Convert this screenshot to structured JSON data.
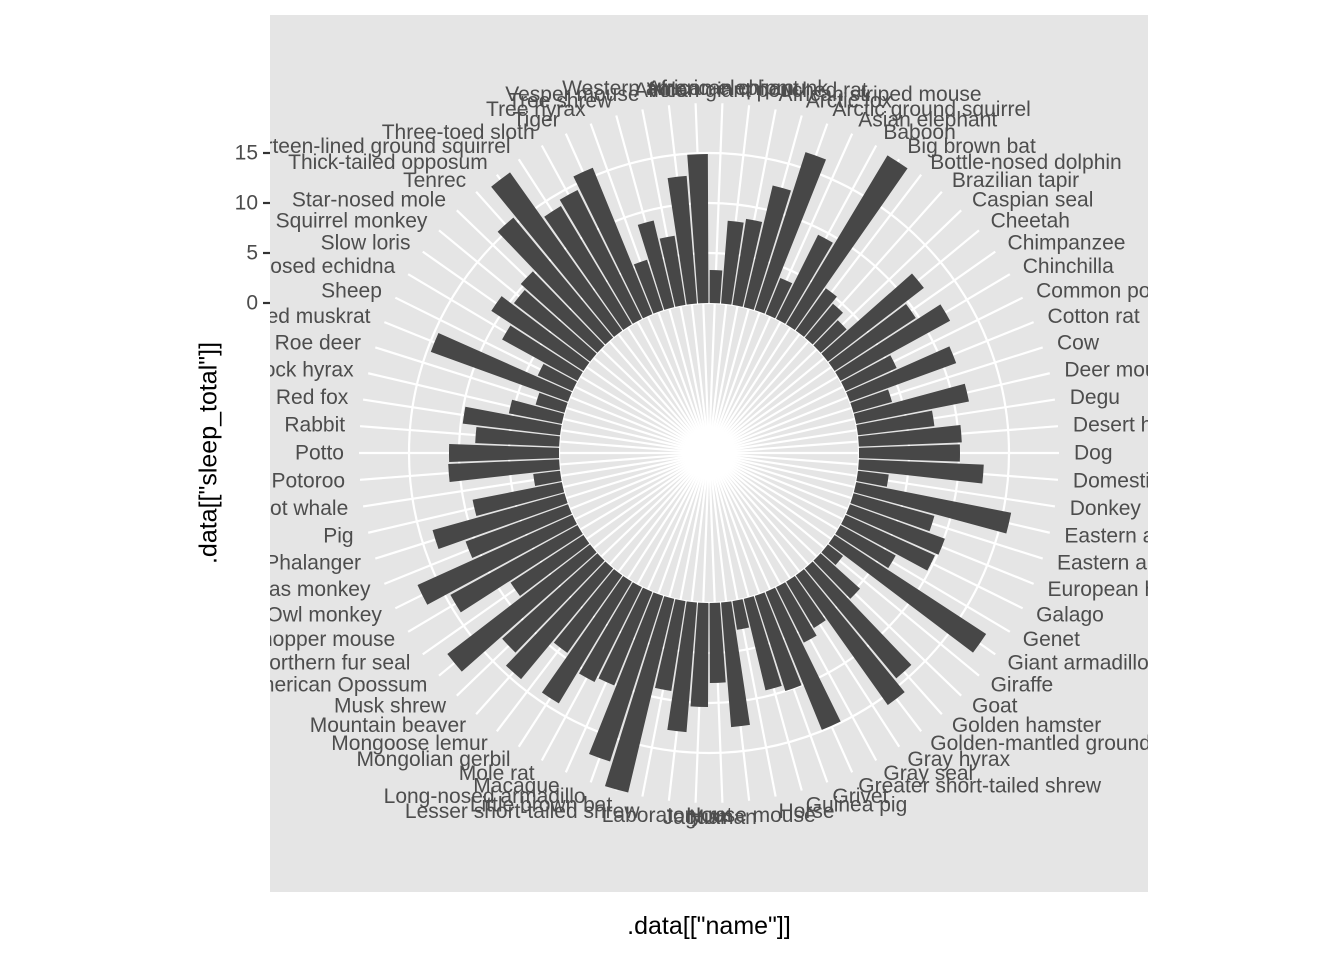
{
  "chart_data": {
    "type": "bar",
    "coordinate_system": "polar",
    "xlabel": ".data[[\"name\"]]",
    "ylabel": ".data[[\"sleep_total\"]]",
    "y_ticks": [
      0,
      5,
      10,
      15
    ],
    "ylim": [
      -15,
      20
    ],
    "grid": true,
    "colors": {
      "panel": "#e5e5e5",
      "grid": "#ffffff",
      "bar": "#474747",
      "text": "#4d4d4d"
    },
    "categories": [
      "African elephant",
      "African giant pouched rat",
      "African striped mouse",
      "Arctic fox",
      "Arctic ground squirrel",
      "Asian elephant",
      "Baboon",
      "Big brown bat",
      "Bottle-nosed dolphin",
      "Brazilian tapir",
      "Caspian seal",
      "Cheetah",
      "Chimpanzee",
      "Chinchilla",
      "Common porpoise",
      "Cotton rat",
      "Cow",
      "Deer mouse",
      "Degu",
      "Desert hedgehog",
      "Dog",
      "Domestic cat",
      "Donkey",
      "Eastern american chipmunk",
      "Eastern american mole",
      "European hedgehog",
      "Galago",
      "Genet",
      "Giant armadillo",
      "Giraffe",
      "Goat",
      "Golden hamster",
      "Golden-mantled ground squirrel",
      "Gray hyrax",
      "Gray seal",
      "Greater short-tailed shrew",
      "Grivet",
      "Guinea pig",
      "Horse",
      "House mouse",
      "Human",
      "Jaguar",
      "Laboratory rat",
      "Lesser short-tailed shrew",
      "Little brown bat",
      "Long-nosed armadillo",
      "Macaque",
      "Mole rat",
      "Mongolian gerbil",
      "Mongoose lemur",
      "Mountain beaver",
      "Musk shrew",
      "North American Opossum",
      "Northern fur seal",
      "Northern grasshopper mouse",
      "Owl monkey",
      "Patas monkey",
      "Phalanger",
      "Pig",
      "Pilot whale",
      "Potoroo",
      "Potto",
      "Rabbit",
      "Red fox",
      "Rock hyrax",
      "Roe deer",
      "Round-tailed muskrat",
      "Sheep",
      "Short-nosed echidna",
      "Slow loris",
      "Squirrel monkey",
      "Star-nosed mole",
      "Tenrec",
      "Thick-tailed opposum",
      "Thirteen-lined ground squirrel",
      "Three-toed sloth",
      "Tiger",
      "Tree hyrax",
      "Tree shrew",
      "Vesper mouse",
      "Vole ",
      "Western american chipmunk"
    ],
    "values": [
      3.3,
      8.3,
      8.7,
      12.5,
      16.6,
      3.9,
      9.4,
      19.7,
      5.2,
      4.4,
      3.5,
      12.1,
      9.7,
      12.5,
      5.6,
      11.3,
      4.0,
      11.5,
      7.7,
      10.3,
      10.1,
      12.5,
      3.1,
      15.8,
      8.4,
      10.1,
      9.8,
      6.3,
      18.1,
      1.9,
      5.3,
      14.3,
      15.9,
      5.4,
      6.2,
      14.9,
      10.0,
      9.4,
      2.9,
      12.5,
      8.0,
      10.4,
      13.0,
      9.1,
      19.9,
      17.4,
      10.1,
      10.6,
      14.2,
      9.5,
      14.4,
      12.8,
      18.0,
      8.7,
      14.5,
      17.0,
      10.9,
      13.7,
      9.1,
      2.7,
      11.1,
      11.0,
      8.4,
      9.8,
      5.4,
      3.0,
      14.6,
      3.8,
      8.6,
      11.0,
      9.6,
      10.3,
      15.6,
      19.4,
      13.8,
      14.4,
      15.8,
      5.3,
      8.9,
      7.0,
      12.8,
      14.9
    ]
  }
}
